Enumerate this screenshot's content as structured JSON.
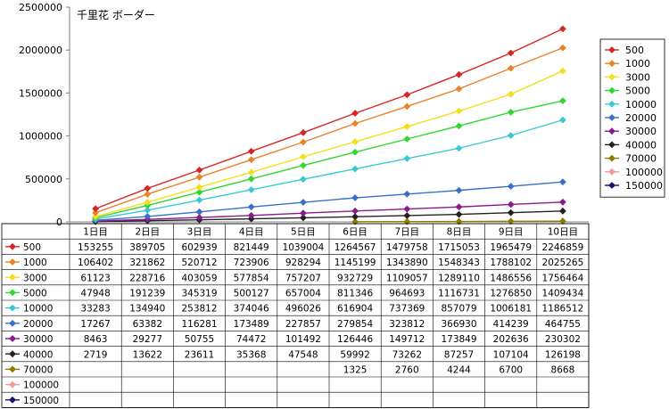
{
  "chart_data": {
    "type": "line",
    "title": "千里花 ボーダー",
    "categories": [
      "1日目",
      "2日目",
      "3日目",
      "4日目",
      "5日目",
      "6日目",
      "7日目",
      "8日目",
      "9日目",
      "10日目"
    ],
    "ylim": [
      0,
      2500000
    ],
    "y_ticks": [
      "0",
      "500000",
      "1000000",
      "1500000",
      "2000000",
      "2500000"
    ],
    "y_tick_values": [
      0,
      500000,
      1000000,
      1500000,
      2000000,
      2500000
    ],
    "grid": false,
    "legend_position": "right",
    "series": [
      {
        "name": "500",
        "color": "#d62728",
        "values": [
          153255,
          389705,
          602939,
          821449,
          1039004,
          1264567,
          1479758,
          1715053,
          1965479,
          2246859
        ]
      },
      {
        "name": "1000",
        "color": "#e8832a",
        "values": [
          106402,
          321862,
          520712,
          723906,
          928294,
          1145199,
          1343890,
          1548343,
          1788102,
          2025265
        ]
      },
      {
        "name": "3000",
        "color": "#f2df1e",
        "values": [
          61123,
          228716,
          403059,
          577854,
          757207,
          932729,
          1109057,
          1289110,
          1486556,
          1756464
        ]
      },
      {
        "name": "5000",
        "color": "#33d633",
        "values": [
          47948,
          191239,
          345319,
          500127,
          657004,
          811346,
          964693,
          1116731,
          1276850,
          1409434
        ]
      },
      {
        "name": "10000",
        "color": "#3cc8d2",
        "values": [
          33283,
          134940,
          253812,
          374046,
          496026,
          616904,
          737369,
          857079,
          1006181,
          1186512
        ]
      },
      {
        "name": "20000",
        "color": "#3b6fc9",
        "values": [
          17267,
          63382,
          116281,
          173489,
          227857,
          279854,
          323812,
          366930,
          414239,
          464755
        ]
      },
      {
        "name": "30000",
        "color": "#8b1a8b",
        "values": [
          8463,
          29277,
          50755,
          74472,
          101492,
          126446,
          149712,
          173849,
          202636,
          230302
        ]
      },
      {
        "name": "40000",
        "color": "#222222",
        "values": [
          2719,
          13622,
          23611,
          35368,
          47548,
          59992,
          73262,
          87257,
          107104,
          126198
        ]
      },
      {
        "name": "70000",
        "color": "#8c7d00",
        "values": [
          null,
          null,
          null,
          null,
          null,
          1325,
          2760,
          4244,
          6700,
          8668
        ]
      },
      {
        "name": "100000",
        "color": "#f29a9a",
        "values": [
          null,
          null,
          null,
          null,
          null,
          null,
          null,
          null,
          null,
          null
        ]
      },
      {
        "name": "150000",
        "color": "#14146b",
        "values": [
          null,
          null,
          null,
          null,
          null,
          null,
          null,
          null,
          null,
          null
        ]
      }
    ]
  }
}
